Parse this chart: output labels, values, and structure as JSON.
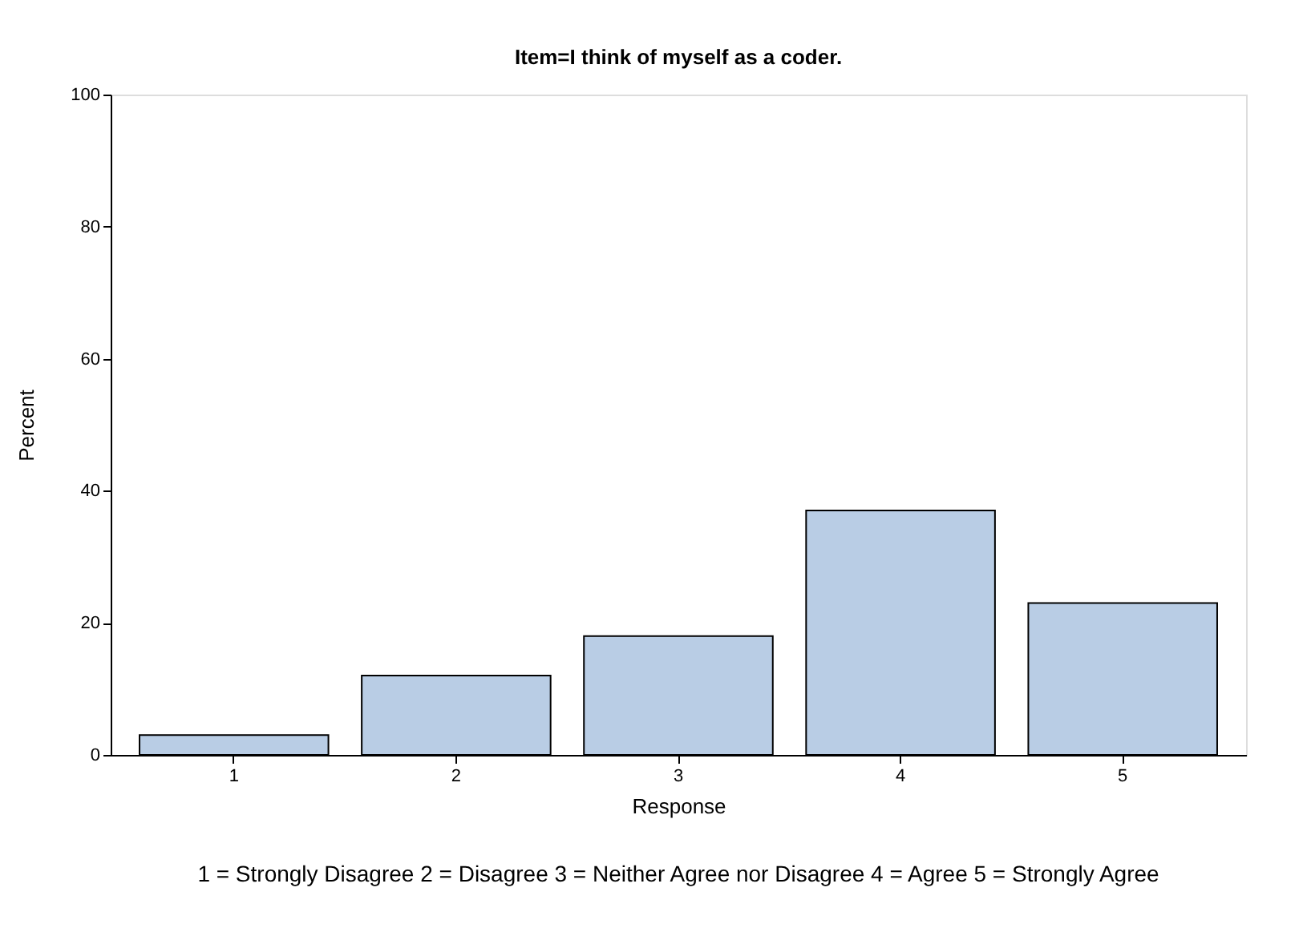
{
  "chart_data": {
    "type": "bar",
    "title": "Item=I think of myself as a coder.",
    "xlabel": "Response",
    "ylabel": "Percent",
    "categories": [
      "1",
      "2",
      "3",
      "4",
      "5"
    ],
    "values": [
      3,
      12,
      18,
      37,
      23
    ],
    "color": "#b9cde5",
    "ylim": [
      0,
      100
    ],
    "yticks": [
      0,
      20,
      40,
      60,
      80,
      100
    ],
    "grid": false,
    "annotations": [
      "1 = Strongly Disagree 2 = Disagree 3 = Neither Agree nor Disagree 4 = Agree 5 = Strongly Agree"
    ]
  }
}
